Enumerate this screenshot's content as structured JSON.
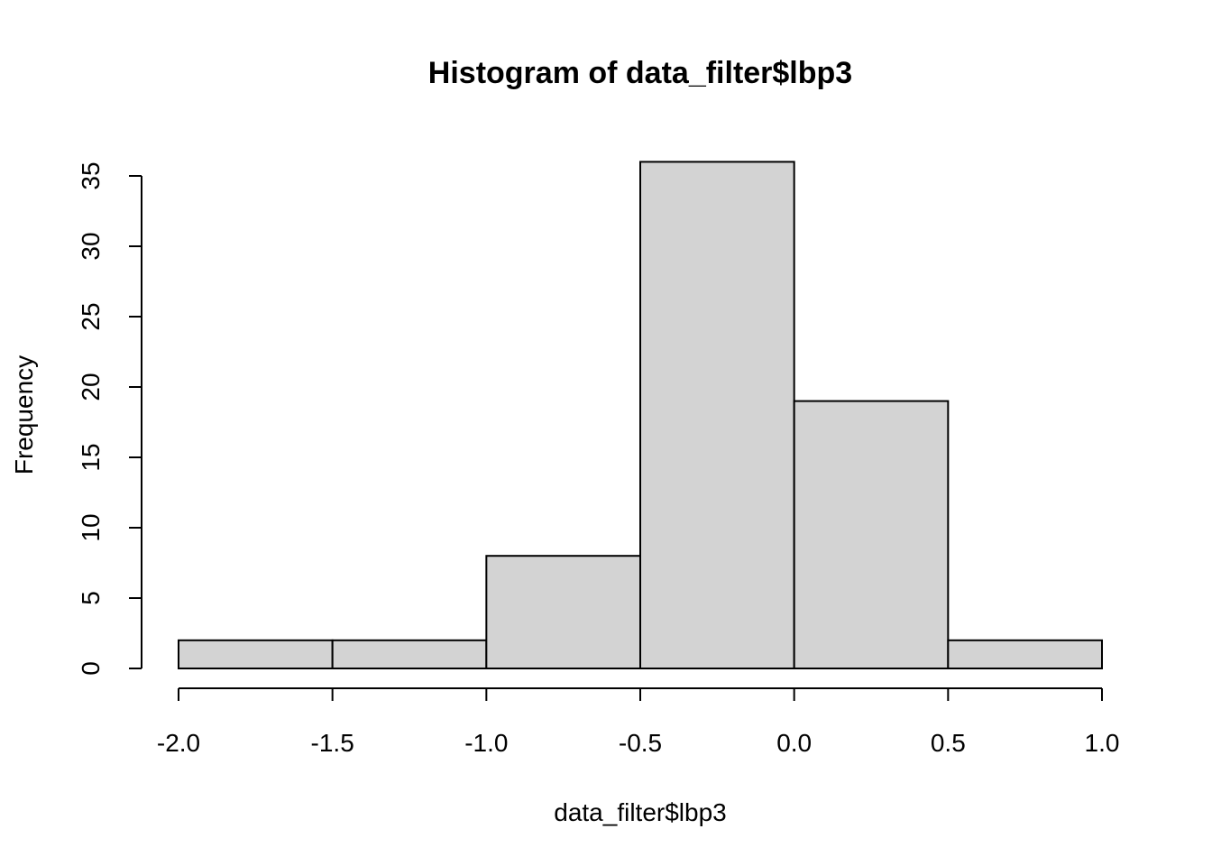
{
  "chart_data": {
    "type": "bar",
    "title": "Histogram of data_filter$lbp3",
    "xlabel": "data_filter$lbp3",
    "ylabel": "Frequency",
    "bins": [
      {
        "x0": -2.0,
        "x1": -1.5,
        "count": 2
      },
      {
        "x0": -1.5,
        "x1": -1.0,
        "count": 2
      },
      {
        "x0": -1.0,
        "x1": -0.5,
        "count": 8
      },
      {
        "x0": -0.5,
        "x1": 0.0,
        "count": 36
      },
      {
        "x0": 0.0,
        "x1": 0.5,
        "count": 19
      },
      {
        "x0": 0.5,
        "x1": 1.0,
        "count": 2
      }
    ],
    "xlim": [
      -2.0,
      1.0
    ],
    "ylim": [
      0,
      35
    ],
    "x_ticks": [
      -2.0,
      -1.5,
      -1.0,
      -0.5,
      0.0,
      0.5,
      1.0
    ],
    "x_tick_labels": [
      "-2.0",
      "-1.5",
      "-1.0",
      "-0.5",
      "0.0",
      "0.5",
      "1.0"
    ],
    "y_ticks": [
      0,
      5,
      10,
      15,
      20,
      25,
      30,
      35
    ],
    "y_tick_labels": [
      "0",
      "5",
      "10",
      "15",
      "20",
      "25",
      "30",
      "35"
    ],
    "grid": false,
    "bar_color": "#d3d3d3",
    "edge_color": "#000000"
  }
}
